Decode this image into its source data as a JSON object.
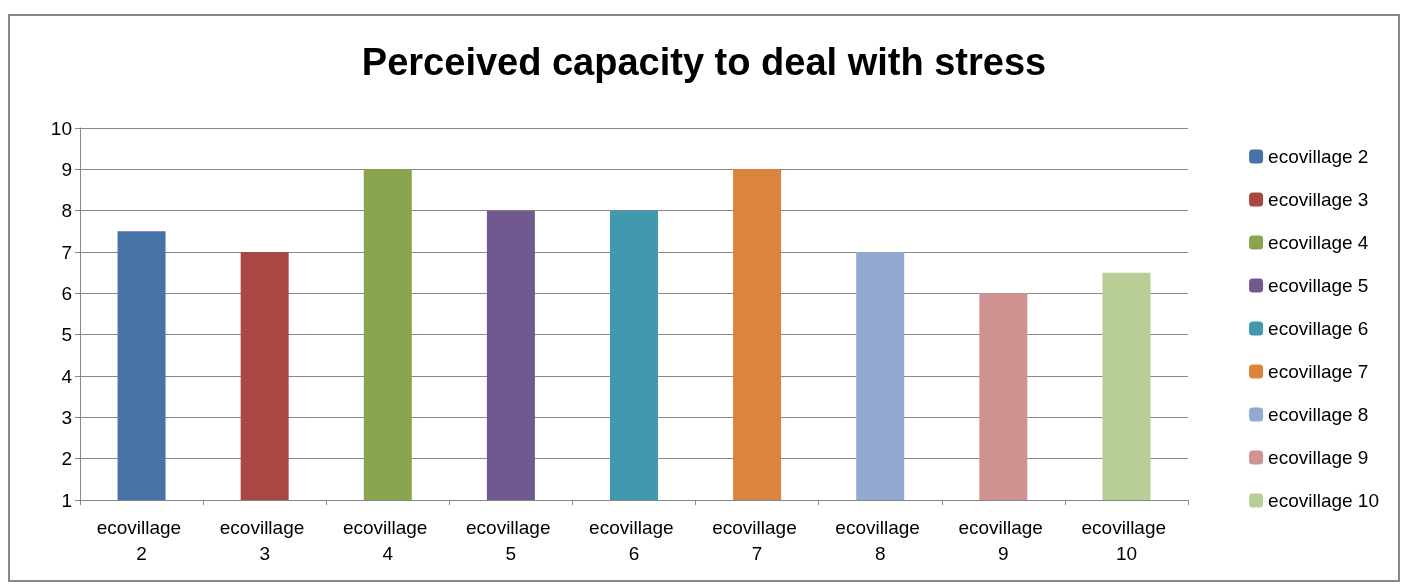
{
  "chart_data": {
    "type": "bar",
    "title": "Perceived capacity to deal with stress",
    "categories": [
      "ecovillage 2",
      "ecovillage 3",
      "ecovillage 4",
      "ecovillage 5",
      "ecovillage 6",
      "ecovillage 7",
      "ecovillage 8",
      "ecovillage 9",
      "ecovillage 10"
    ],
    "series": [
      {
        "name": "ecovillage 2",
        "color": "#4572a7",
        "values": [
          7.5,
          null,
          null,
          null,
          null,
          null,
          null,
          null,
          null
        ]
      },
      {
        "name": "ecovillage 3",
        "color": "#aa4643",
        "values": [
          null,
          7,
          null,
          null,
          null,
          null,
          null,
          null,
          null
        ]
      },
      {
        "name": "ecovillage 4",
        "color": "#89a54e",
        "values": [
          null,
          null,
          9,
          null,
          null,
          null,
          null,
          null,
          null
        ]
      },
      {
        "name": "ecovillage 5",
        "color": "#71588f",
        "values": [
          null,
          null,
          null,
          8,
          null,
          null,
          null,
          null,
          null
        ]
      },
      {
        "name": "ecovillage 6",
        "color": "#4198af",
        "values": [
          null,
          null,
          null,
          null,
          8,
          null,
          null,
          null,
          null
        ]
      },
      {
        "name": "ecovillage 7",
        "color": "#db843d",
        "values": [
          null,
          null,
          null,
          null,
          null,
          9,
          null,
          null,
          null
        ]
      },
      {
        "name": "ecovillage 8",
        "color": "#93a9cf",
        "values": [
          null,
          null,
          null,
          null,
          null,
          null,
          7,
          null,
          null
        ]
      },
      {
        "name": "ecovillage 9",
        "color": "#d19392",
        "values": [
          null,
          null,
          null,
          null,
          null,
          null,
          null,
          6,
          null
        ]
      },
      {
        "name": "ecovillage 10",
        "color": "#b9cd96",
        "values": [
          null,
          null,
          null,
          null,
          null,
          null,
          null,
          null,
          6.5
        ]
      }
    ],
    "stacked": true,
    "ylim": [
      1,
      10
    ],
    "yticks": [
      1,
      2,
      3,
      4,
      5,
      6,
      7,
      8,
      9,
      10
    ],
    "grid": "y",
    "legend": "right"
  }
}
